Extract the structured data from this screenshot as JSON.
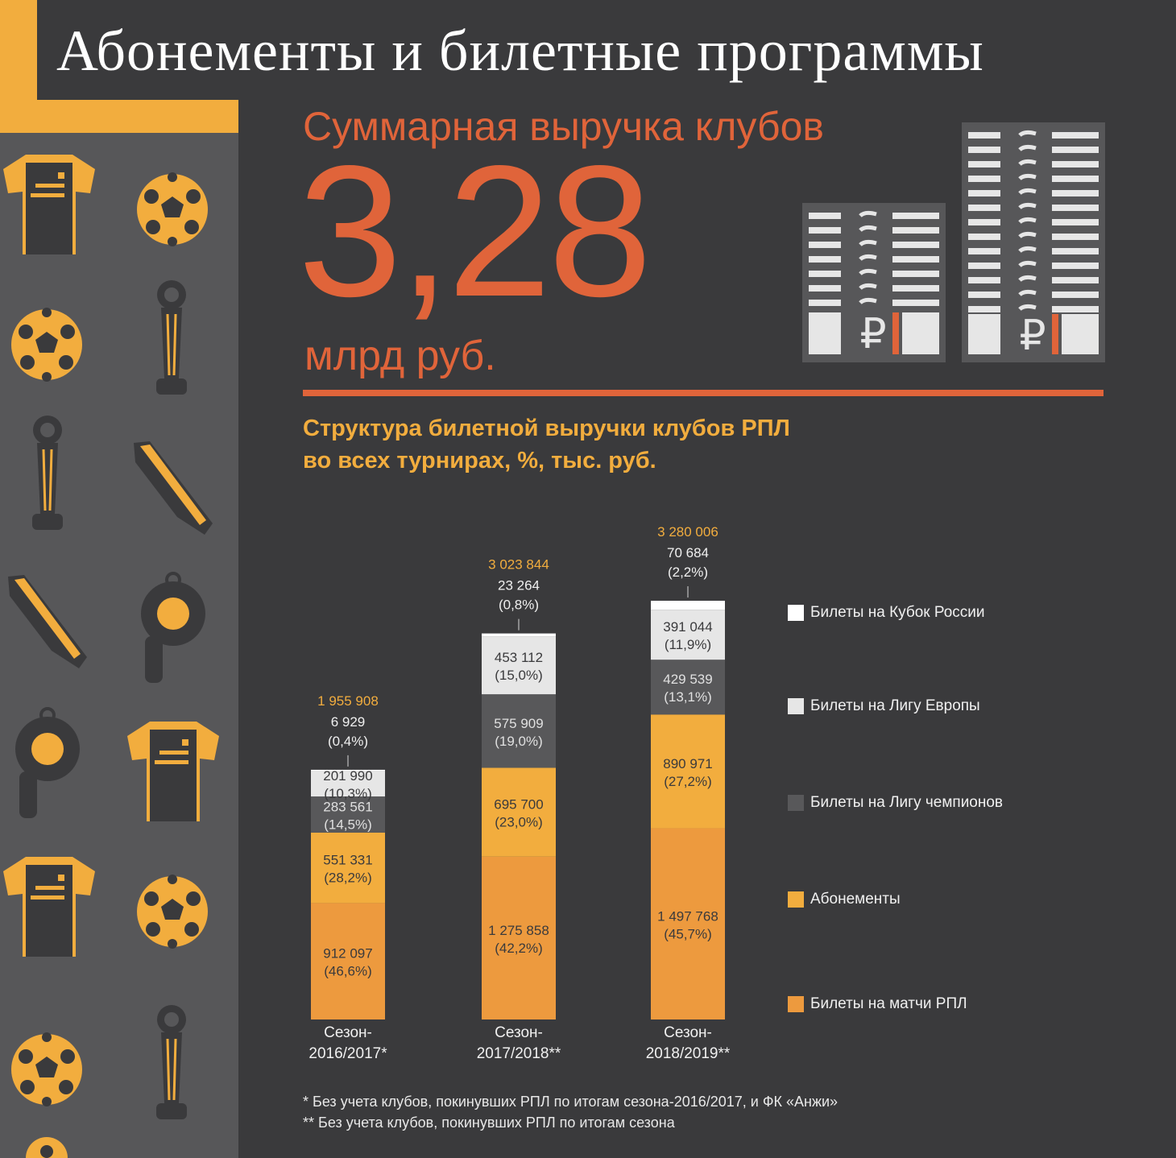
{
  "title": "Абонементы и билетные программы",
  "summary": {
    "label": "Суммарная  выручка клубов",
    "value": "3,28",
    "unit": "млрд руб."
  },
  "section": {
    "line1": "Структура билетной выручки клубов РПЛ",
    "line2": "во всех турнирах, %, тыс. руб."
  },
  "colors": {
    "background": "#3a3a3c",
    "sidebar": "#575759",
    "accent_yellow": "#f2ad3e",
    "accent_orange": "#e0643a",
    "cup": "#ffffff",
    "europa": "#e6e6e6",
    "champions": "#58585a",
    "season_tickets": "#f2ad3e",
    "rpl_tickets": "#ed9a3e"
  },
  "icons": [
    "jersey-icon",
    "ball-icon",
    "ball-icon",
    "trophy-icon",
    "trophy-icon",
    "boot-icon",
    "boot-icon",
    "whistle-icon",
    "whistle-icon",
    "jersey-icon",
    "jersey-icon",
    "ball-icon",
    "ball-icon",
    "trophy-icon",
    "ball-icon",
    "ruble-banknote-stack-icon"
  ],
  "chart_data": {
    "type": "bar",
    "stacked": true,
    "categories_lines": [
      [
        "Сезон-",
        "2016/2017*"
      ],
      [
        "Сезон-",
        "2017/2018**"
      ],
      [
        "Сезон-",
        "2018/2019**"
      ]
    ],
    "totals": [
      "1 955 908",
      "3 023 844",
      "3 280 006"
    ],
    "series": [
      {
        "name": "Билеты на матчи РПЛ",
        "color": "#ed9a3e",
        "values": [
          912097,
          1275858,
          1497768
        ],
        "labels": [
          [
            "912 097",
            "(46,6%)"
          ],
          [
            "1 275 858",
            "(42,2%)"
          ],
          [
            "1 497 768",
            "(45,7%)"
          ]
        ]
      },
      {
        "name": "Абонементы",
        "color": "#f2ad3e",
        "values": [
          551331,
          695700,
          890971
        ],
        "labels": [
          [
            "551 331",
            "(28,2%)"
          ],
          [
            "695 700",
            "(23,0%)"
          ],
          [
            "890 971",
            "(27,2%)"
          ]
        ]
      },
      {
        "name": "Билеты на Лигу чемпионов",
        "color": "#58585a",
        "values": [
          283561,
          575909,
          429539
        ],
        "labels": [
          [
            "283 561",
            "(14,5%)"
          ],
          [
            "575 909",
            "(19,0%)"
          ],
          [
            "429 539",
            "(13,1%)"
          ]
        ]
      },
      {
        "name": "Билеты на Лигу Европы",
        "color": "#e6e6e6",
        "values": [
          201990,
          453112,
          391044
        ],
        "labels": [
          [
            "201 990",
            "(10,3%)"
          ],
          [
            "453 112",
            "(15,0%)"
          ],
          [
            "391 044",
            "(11,9%)"
          ]
        ]
      },
      {
        "name": "Билеты на Кубок России",
        "color": "#ffffff",
        "values": [
          6929,
          23264,
          70684
        ],
        "labels": [
          [
            "6 929",
            "(0,4%)"
          ],
          [
            "23 264",
            "(0,8%)"
          ],
          [
            "70 684",
            "(2,2%)"
          ]
        ]
      }
    ],
    "legend_order": [
      "Билеты на Кубок России",
      "Билеты на Лигу Европы",
      "Билеты на Лигу чемпионов",
      "Абонементы",
      "Билеты на матчи РПЛ"
    ],
    "legend_position": "right"
  },
  "footnotes": [
    "* Без учета клубов, покинувших РПЛ по итогам сезона-2016/2017, и ФК «Анжи»",
    "** Без учета клубов, покинувших РПЛ по итогам сезона"
  ]
}
